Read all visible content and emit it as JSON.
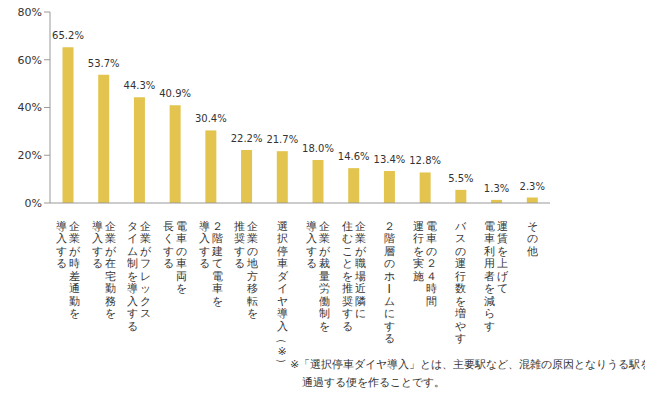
{
  "chart_data": {
    "type": "bar",
    "categories": [
      "企業が時差通勤を\n導入する",
      "企業が在宅勤務を\n導入する",
      "企業がフレックス\nタイム制を導入する",
      "電車の車両を\n長くする",
      "２階建て電車を\n導入する",
      "企業の地方移転を\n推奨する",
      "選択停車ダイヤ導入（※）",
      "企業が裁量労働制を\n導入する",
      "企業が職場近隣に\n住むことを推奨する",
      "２階層のホームにする",
      "電車の２４時間\n運行を実施",
      "バスの運行数を増やす",
      "運賃を上げて\n電車利用者を減らす",
      "その他"
    ],
    "values": [
      65.2,
      53.7,
      44.3,
      40.9,
      30.4,
      22.2,
      21.7,
      18.0,
      14.6,
      13.4,
      12.8,
      5.5,
      1.3,
      2.3
    ],
    "value_labels": [
      "65.2%",
      "53.7%",
      "44.3%",
      "40.9%",
      "30.4%",
      "22.2%",
      "21.7%",
      "18.0%",
      "14.6%",
      "13.4%",
      "12.8%",
      "5.5%",
      "1.3%",
      "2.3%"
    ],
    "color": "#e2c44e",
    "ylim": [
      0,
      80
    ],
    "yticks": [
      {
        "value": 0,
        "label": "0%"
      },
      {
        "value": 20,
        "label": "20%"
      },
      {
        "value": 40,
        "label": "40%"
      },
      {
        "value": 60,
        "label": "60%"
      },
      {
        "value": 80,
        "label": "80%"
      }
    ],
    "grid": false,
    "data_labels": true,
    "annotations": [
      "※「選択停車ダイヤ導入」とは、主要駅など、混雑の原因となりうる駅を",
      "通過する便を作ることです。"
    ]
  }
}
